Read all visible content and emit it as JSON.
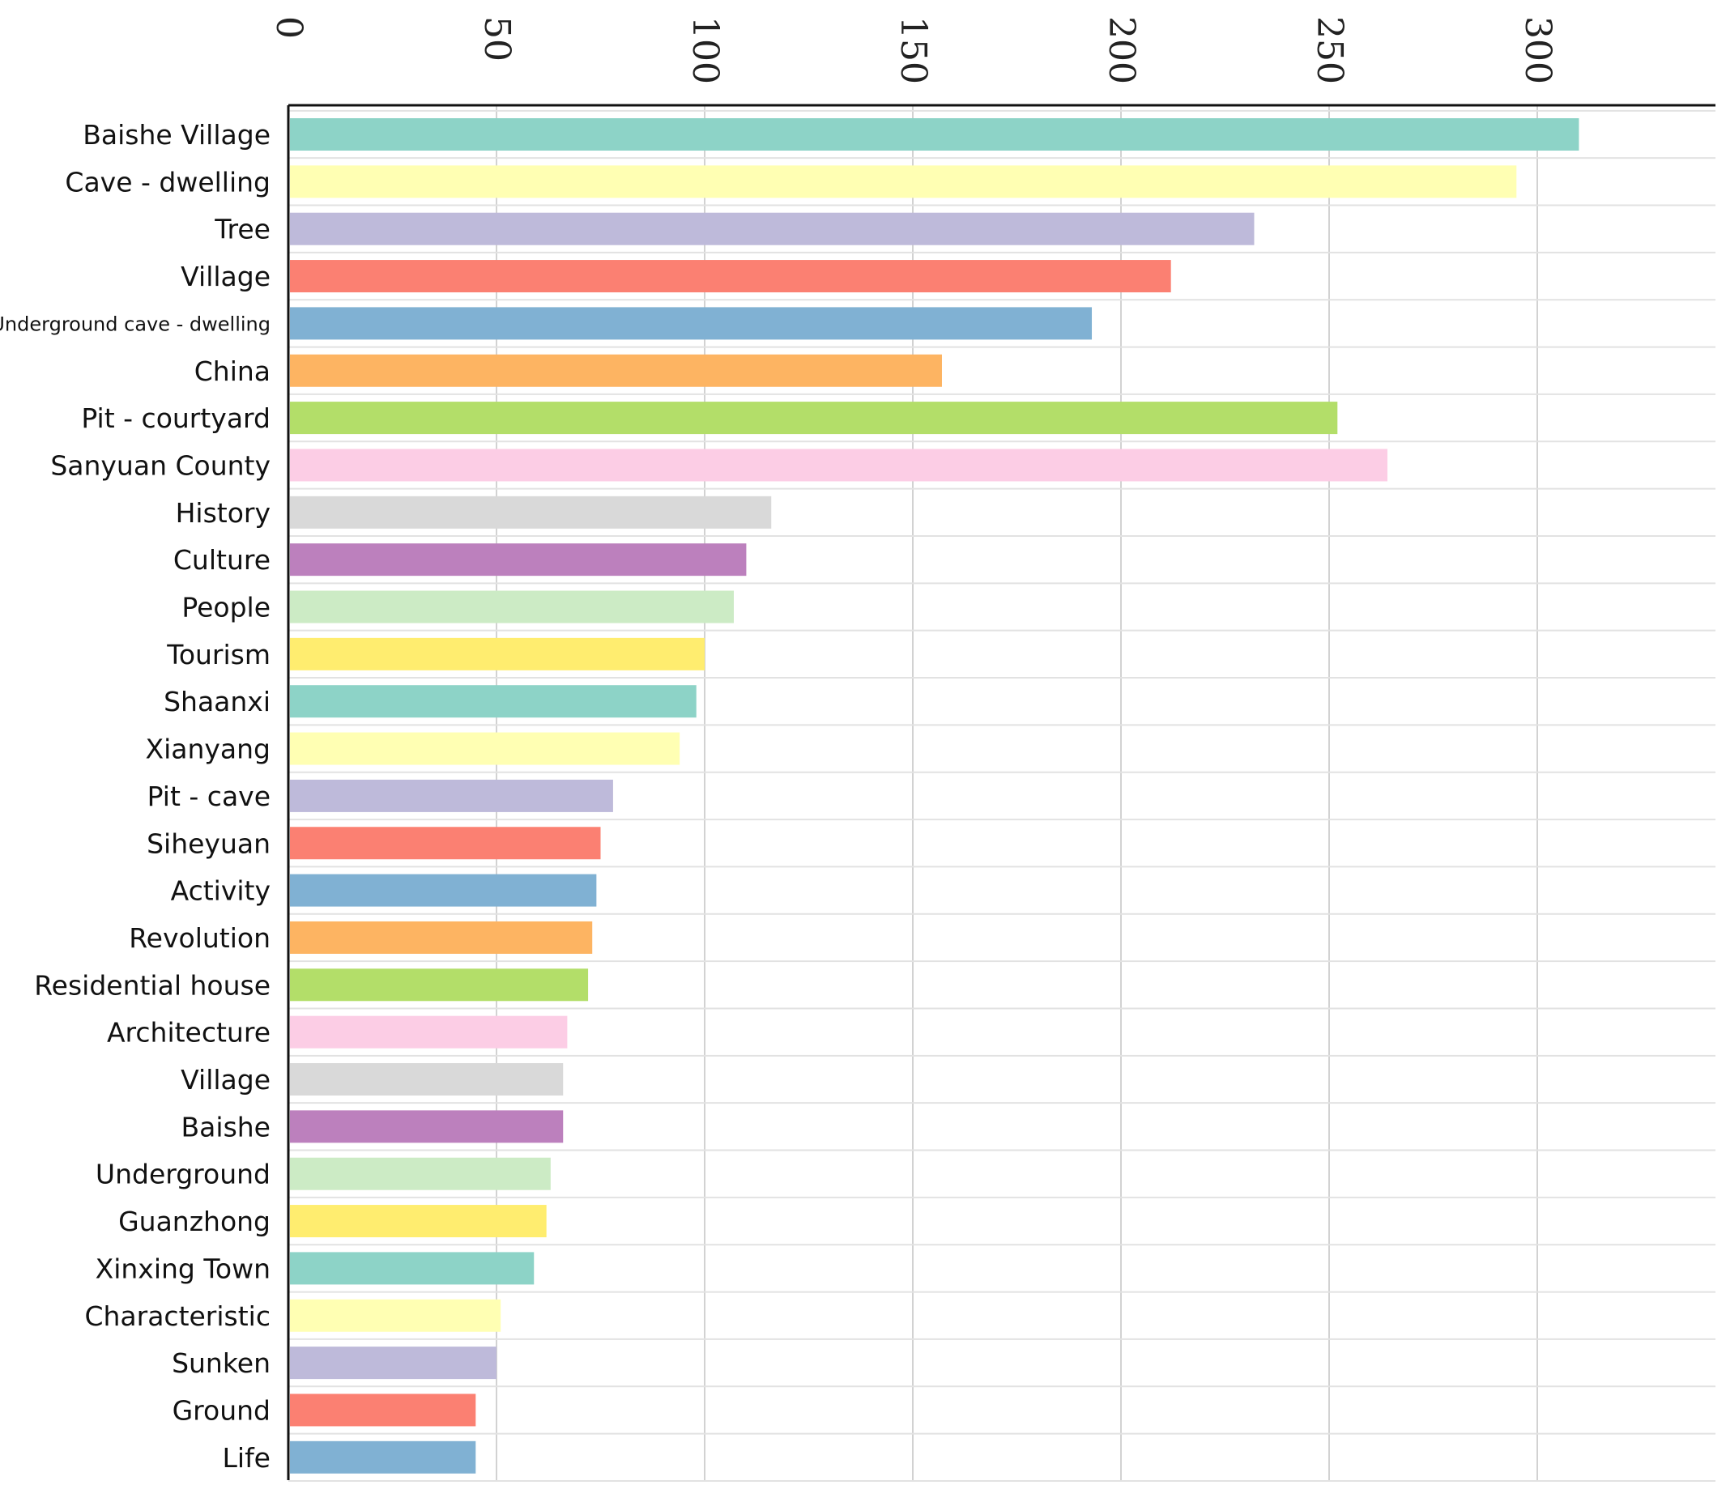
{
  "chart_data": {
    "type": "bar",
    "orientation": "horizontal",
    "x_axis_position": "top",
    "title": "",
    "xlabel": "",
    "ylabel": "",
    "xlim": [
      0,
      330
    ],
    "xticks": [
      0,
      50,
      100,
      150,
      200,
      250,
      300
    ],
    "grid": true,
    "categories": [
      "Baishe Village",
      "Cave - dwelling",
      "Tree",
      "Village",
      "Underground cave - dwelling",
      "China",
      "Pit - courtyard",
      "Sanyuan County",
      "History",
      "Culture",
      "People",
      "Tourism",
      "Shaanxi",
      "Xianyang",
      "Pit - cave",
      "Siheyuan",
      "Activity",
      "Revolution",
      "Residential house",
      "Architecture",
      "Village",
      "Baishe",
      "Underground",
      "Guanzhong",
      "Xinxing Town",
      "Characteristic",
      "Sunken",
      "Ground",
      "Life"
    ],
    "values": [
      310,
      295,
      232,
      212,
      193,
      157,
      252,
      264,
      116,
      110,
      107,
      100,
      98,
      94,
      78,
      75,
      74,
      73,
      72,
      67,
      66,
      66,
      63,
      62,
      59,
      51,
      50,
      45,
      45
    ],
    "colors": [
      "#8dd3c7",
      "#ffffb3",
      "#bebada",
      "#fb8072",
      "#80b1d3",
      "#fdb462",
      "#b3de69",
      "#fccde5",
      "#d9d9d9",
      "#bc80bd",
      "#ccebc5",
      "#ffed6f",
      "#8dd3c7",
      "#ffffb3",
      "#bebada",
      "#fb8072",
      "#80b1d3",
      "#fdb462",
      "#b3de69",
      "#fccde5",
      "#d9d9d9",
      "#bc80bd",
      "#ccebc5",
      "#ffed6f",
      "#8dd3c7",
      "#ffffb3",
      "#bebada",
      "#fb8072",
      "#80b1d3"
    ]
  }
}
